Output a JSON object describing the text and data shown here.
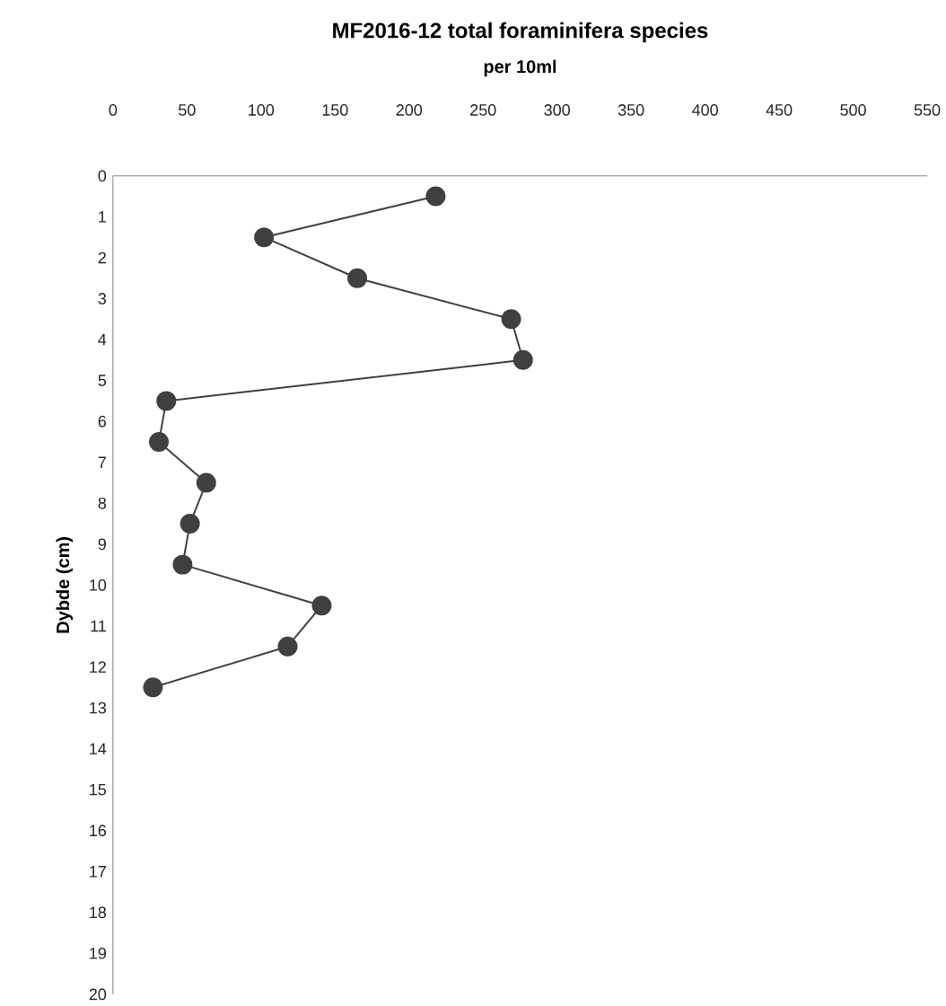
{
  "chart_data": {
    "type": "line",
    "title": "MF2016-12 total foraminifera species",
    "xlabel": "per 10ml",
    "ylabel": "Dybde (cm)",
    "xlim": [
      0,
      550
    ],
    "xticks": [
      0,
      50,
      100,
      150,
      200,
      250,
      300,
      350,
      400,
      450,
      500,
      550
    ],
    "ylim": [
      20,
      0
    ],
    "yticks": [
      0,
      1,
      2,
      3,
      4,
      5,
      6,
      7,
      8,
      9,
      10,
      11,
      12,
      13,
      14,
      15,
      16,
      17,
      18,
      19,
      20
    ],
    "marker": "circle",
    "line_style": "solid",
    "grid": false,
    "series": [
      {
        "color": "#404040",
        "x": [
          218,
          102,
          165,
          269,
          277,
          36,
          31,
          63,
          52,
          47,
          141,
          118,
          27
        ],
        "values": [
          0.5,
          1.5,
          2.5,
          3.5,
          4.5,
          5.5,
          6.5,
          7.5,
          8.5,
          9.5,
          10.5,
          11.5,
          12.5
        ]
      }
    ]
  }
}
